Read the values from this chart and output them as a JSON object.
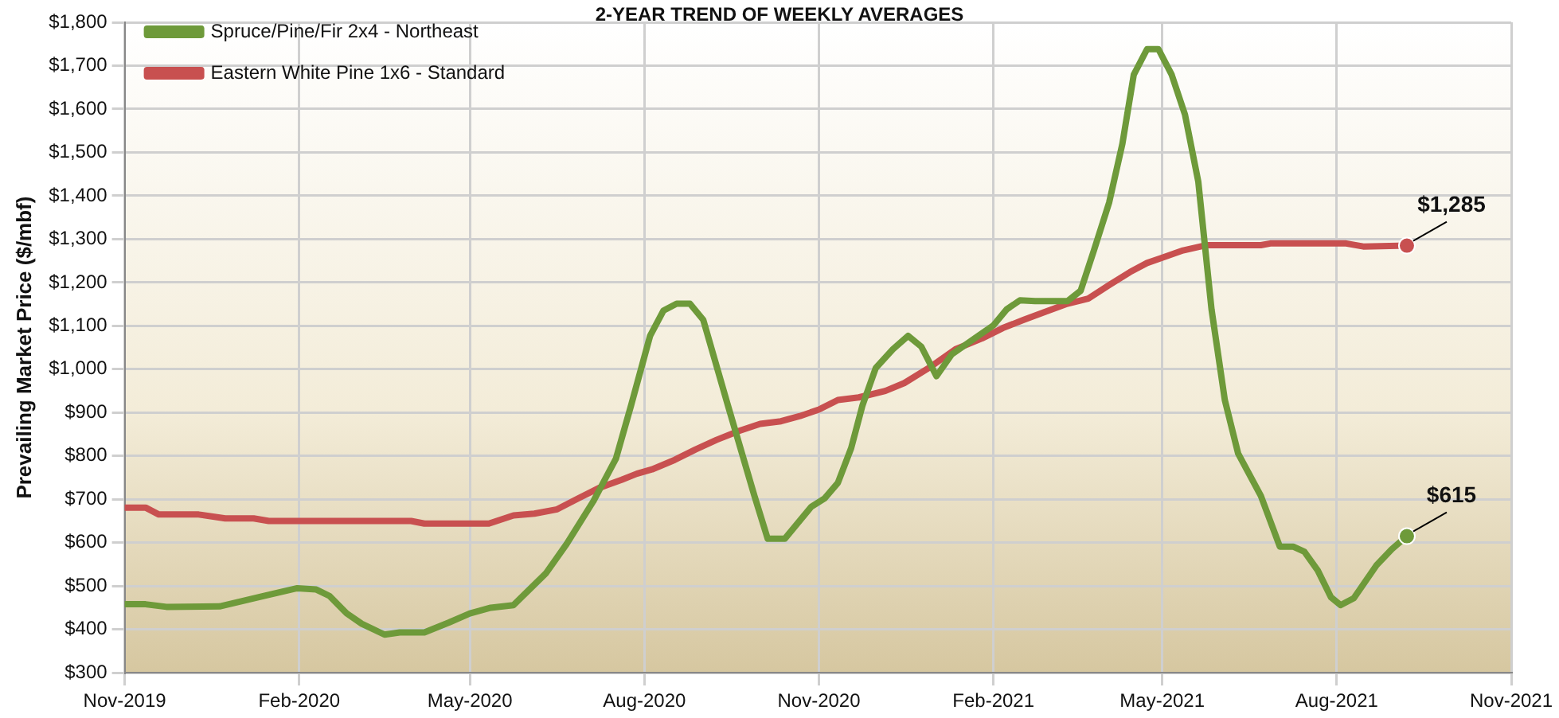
{
  "chart_data": {
    "type": "line",
    "title": "2-YEAR TREND OF WEEKLY AVERAGES",
    "ylabel": "Prevailing Market Price ($/mbf)",
    "xlim": [
      "2019-11-01",
      "2021-11-01"
    ],
    "xticks": [
      {
        "value": "2019-11-01",
        "label": "Nov-2019"
      },
      {
        "value": "2020-02-01",
        "label": "Feb-2020"
      },
      {
        "value": "2020-05-01",
        "label": "May-2020"
      },
      {
        "value": "2020-08-01",
        "label": "Aug-2020"
      },
      {
        "value": "2020-11-01",
        "label": "Nov-2020"
      },
      {
        "value": "2021-02-01",
        "label": "Feb-2021"
      },
      {
        "value": "2021-05-01",
        "label": "May-2021"
      },
      {
        "value": "2021-08-01",
        "label": "Aug-2021"
      },
      {
        "value": "2021-11-01",
        "label": "Nov-2021"
      }
    ],
    "ylim": [
      300,
      1800
    ],
    "yticks": [
      {
        "value": 300,
        "label": "$300"
      },
      {
        "value": 400,
        "label": "$400"
      },
      {
        "value": 500,
        "label": "$500"
      },
      {
        "value": 600,
        "label": "$600"
      },
      {
        "value": 700,
        "label": "$700"
      },
      {
        "value": 800,
        "label": "$800"
      },
      {
        "value": 900,
        "label": "$900"
      },
      {
        "value": 1000,
        "label": "$1,000"
      },
      {
        "value": 1100,
        "label": "$1,100"
      },
      {
        "value": 1200,
        "label": "$1,200"
      },
      {
        "value": 1300,
        "label": "$1,300"
      },
      {
        "value": 1400,
        "label": "$1,400"
      },
      {
        "value": 1500,
        "label": "$1,500"
      },
      {
        "value": 1600,
        "label": "$1,600"
      },
      {
        "value": 1700,
        "label": "$1,700"
      },
      {
        "value": 1800,
        "label": "$1,800"
      }
    ],
    "grid": true,
    "legend": "top left",
    "marker": "none",
    "line_style": "solid",
    "series": [
      {
        "name": "Spruce/Pine/Fir 2x4 - Northeast",
        "color": "#6e9a3a",
        "x": [
          "2019-11-01",
          "2019-11-12",
          "2019-11-23",
          "2019-12-21",
          "2020-01-13",
          "2020-01-31",
          "2020-02-10",
          "2020-02-17",
          "2020-02-26",
          "2020-03-05",
          "2020-03-17",
          "2020-03-25",
          "2020-04-07",
          "2020-04-20",
          "2020-05-01",
          "2020-05-12",
          "2020-05-24",
          "2020-06-10",
          "2020-06-21",
          "2020-07-05",
          "2020-07-17",
          "2020-07-25",
          "2020-08-04",
          "2020-08-11",
          "2020-08-18",
          "2020-08-25",
          "2020-09-01",
          "2020-09-14",
          "2020-09-28",
          "2020-10-05",
          "2020-10-14",
          "2020-10-28",
          "2020-11-04",
          "2020-11-11",
          "2020-11-18",
          "2020-11-24",
          "2020-12-01",
          "2020-12-10",
          "2020-12-18",
          "2020-12-25",
          "2021-01-02",
          "2021-01-10",
          "2021-01-22",
          "2021-02-01",
          "2021-02-08",
          "2021-02-15",
          "2021-02-23",
          "2021-03-12",
          "2021-03-19",
          "2021-03-26",
          "2021-04-03",
          "2021-04-10",
          "2021-04-16",
          "2021-04-23",
          "2021-04-29",
          "2021-05-06",
          "2021-05-13",
          "2021-05-20",
          "2021-05-27",
          "2021-06-03",
          "2021-06-10",
          "2021-06-22",
          "2021-07-02",
          "2021-07-09",
          "2021-07-15",
          "2021-07-22",
          "2021-07-29",
          "2021-08-03",
          "2021-08-10",
          "2021-08-22",
          "2021-08-30",
          "2021-09-07"
        ],
        "values": [
          458,
          458,
          452,
          453,
          477,
          495,
          492,
          477,
          437,
          413,
          388,
          393,
          393,
          416,
          437,
          450,
          456,
          529,
          597,
          695,
          794,
          917,
          1077,
          1135,
          1151,
          1151,
          1114,
          917,
          708,
          609,
          609,
          683,
          702,
          738,
          818,
          917,
          1003,
          1046,
          1077,
          1052,
          984,
          1034,
          1071,
          1101,
          1138,
          1159,
          1157,
          1157,
          1181,
          1274,
          1384,
          1520,
          1679,
          1738,
          1738,
          1679,
          1587,
          1433,
          1138,
          929,
          806,
          708,
          591,
          591,
          579,
          536,
          474,
          456,
          472,
          548,
          585,
          615
        ],
        "value_labels": [
          null,
          null,
          null,
          null,
          null,
          null,
          null,
          null,
          null,
          null,
          null,
          null,
          null,
          null,
          null,
          null,
          null,
          null,
          null,
          null,
          null,
          null,
          null,
          null,
          null,
          null,
          null,
          null,
          null,
          null,
          null,
          null,
          null,
          null,
          null,
          null,
          null,
          null,
          null,
          null,
          null,
          null,
          null,
          null,
          null,
          null,
          null,
          null,
          null,
          null,
          null,
          null,
          null,
          null,
          null,
          null,
          null,
          null,
          null,
          null,
          null,
          null,
          null,
          null,
          null,
          null,
          null,
          null,
          null,
          null,
          null,
          "$615"
        ]
      },
      {
        "name": "Eastern White Pine 1x6 - Standard",
        "color": "#c85050",
        "x": [
          "2019-11-01",
          "2019-11-12",
          "2019-11-19",
          "2019-12-10",
          "2019-12-24",
          "2020-01-08",
          "2020-01-16",
          "2020-03-31",
          "2020-04-07",
          "2020-05-11",
          "2020-05-24",
          "2020-06-04",
          "2020-06-16",
          "2020-06-27",
          "2020-07-08",
          "2020-07-20",
          "2020-07-28",
          "2020-08-05",
          "2020-08-17",
          "2020-08-28",
          "2020-09-08",
          "2020-09-20",
          "2020-10-01",
          "2020-10-12",
          "2020-10-22",
          "2020-11-01",
          "2020-11-11",
          "2020-11-22",
          "2020-12-06",
          "2020-12-16",
          "2020-12-29",
          "2021-01-12",
          "2021-01-26",
          "2021-02-06",
          "2021-02-17",
          "2021-02-28",
          "2021-03-12",
          "2021-03-23",
          "2021-04-03",
          "2021-04-14",
          "2021-04-23",
          "2021-05-01",
          "2021-05-12",
          "2021-05-24",
          "2021-06-22",
          "2021-06-27",
          "2021-08-06",
          "2021-08-15",
          "2021-09-07"
        ],
        "values": [
          681,
          681,
          665,
          665,
          656,
          656,
          650,
          650,
          644,
          644,
          663,
          667,
          677,
          702,
          726,
          745,
          759,
          769,
          791,
          815,
          837,
          858,
          874,
          880,
          892,
          907,
          929,
          935,
          950,
          968,
          1003,
          1046,
          1071,
          1095,
          1114,
          1132,
          1151,
          1163,
          1194,
          1224,
          1245,
          1257,
          1274,
          1286,
          1286,
          1290,
          1290,
          1283,
          1285
        ],
        "value_labels": [
          null,
          null,
          null,
          null,
          null,
          null,
          null,
          null,
          null,
          null,
          null,
          null,
          null,
          null,
          null,
          null,
          null,
          null,
          null,
          null,
          null,
          null,
          null,
          null,
          null,
          null,
          null,
          null,
          null,
          null,
          null,
          null,
          null,
          null,
          null,
          null,
          null,
          null,
          null,
          null,
          null,
          null,
          null,
          null,
          null,
          null,
          null,
          null,
          "$1,285"
        ]
      }
    ]
  }
}
